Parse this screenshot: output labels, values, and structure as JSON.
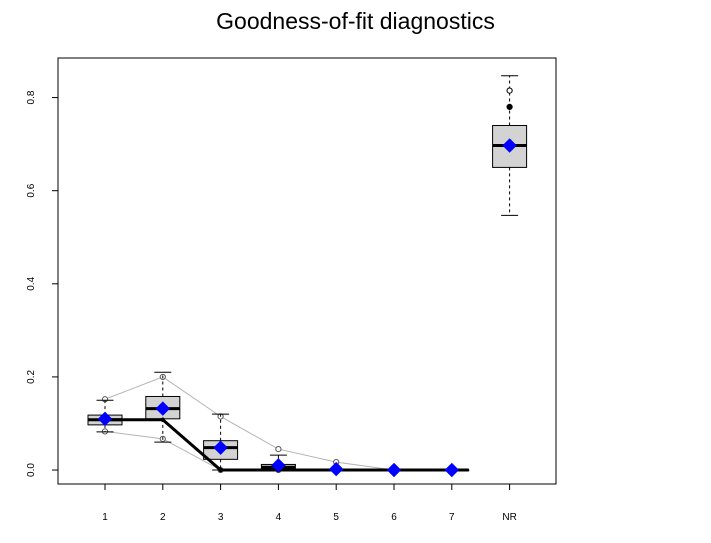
{
  "chart_data": {
    "type": "box",
    "title": "Goodness-of-fit diagnostics",
    "xlabel": "",
    "ylabel": "",
    "categories": [
      "1",
      "2",
      "3",
      "4",
      "5",
      "6",
      "7",
      "NR"
    ],
    "ylim": [
      -0.03,
      0.885
    ],
    "yticks": [
      0.0,
      0.2,
      0.4,
      0.6,
      0.8
    ],
    "ytick_labels": [
      "0.0",
      "0.2",
      "0.4",
      "0.6",
      "0.8"
    ],
    "boxes": [
      {
        "category": "1",
        "whisker_low": 0.082,
        "q1": 0.097,
        "median": 0.108,
        "q3": 0.118,
        "whisker_high": 0.15
      },
      {
        "category": "2",
        "whisker_low": 0.06,
        "q1": 0.11,
        "median": 0.132,
        "q3": 0.158,
        "whisker_high": 0.21
      },
      {
        "category": "3",
        "whisker_low": 0.0,
        "q1": 0.023,
        "median": 0.048,
        "q3": 0.063,
        "whisker_high": 0.12
      },
      {
        "category": "4",
        "whisker_low": 0.0,
        "q1": 0.001,
        "median": 0.006,
        "q3": 0.012,
        "whisker_high": 0.032
      },
      {
        "category": "5",
        "whisker_low": 0.0,
        "q1": 0.0,
        "median": 0.0,
        "q3": 0.0,
        "whisker_high": 0.0
      },
      {
        "category": "6",
        "whisker_low": 0.0,
        "q1": 0.0,
        "median": 0.0,
        "q3": 0.0,
        "whisker_high": 0.0
      },
      {
        "category": "7",
        "whisker_low": 0.0,
        "q1": 0.0,
        "median": 0.0,
        "q3": 0.0,
        "whisker_high": 0.0
      },
      {
        "category": "NR",
        "whisker_low": 0.547,
        "q1": 0.65,
        "median": 0.697,
        "q3": 0.74,
        "whisker_high": 0.847
      }
    ],
    "outliers": [
      {
        "category": "NR",
        "y": 0.815,
        "filled": false
      },
      {
        "category": "NR",
        "y": 0.78,
        "filled": true
      }
    ],
    "mean_markers": {
      "color": "#0000ff",
      "values": [
        0.11,
        0.132,
        0.048,
        0.01,
        0.002,
        0.0,
        0.0,
        0.697
      ]
    },
    "band_upper": {
      "color": "#b3b3b3",
      "values": [
        0.152,
        0.2,
        0.115,
        0.045,
        0.017,
        0.0,
        0.0
      ]
    },
    "band_lower": {
      "color": "#b3b3b3",
      "values": [
        0.083,
        0.067,
        0.0,
        0.0,
        0.0,
        0.0,
        0.0
      ]
    },
    "observed_line": {
      "color": "#000000",
      "values": [
        0.108,
        0.108,
        0.0,
        0.0,
        0.0,
        0.0,
        0.0
      ]
    },
    "box_fill": "#d3d3d3",
    "grid": false,
    "legend": "none"
  }
}
